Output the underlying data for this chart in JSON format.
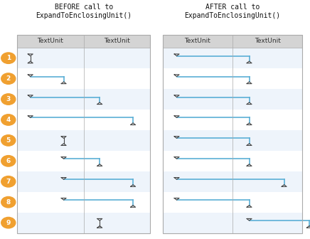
{
  "title_before": "BEFORE call to\nExpandToEnclosingUnit()",
  "title_after": "AFTER call to\nExpandToEnclosingUnit()",
  "header_labels": [
    "TextUnit",
    "TextUnit"
  ],
  "line_color": "#5bafd6",
  "marker_color": "#444444",
  "orange_color": "#f0a030",
  "panel_bg_even": "#eef4fb",
  "panel_bg_odd": "#ffffff",
  "header_bg": "#d4d4d4",
  "panel_border": "#aaaaaa",
  "n_rows": 9,
  "before_start_col": [
    0,
    0,
    0,
    0,
    1,
    1,
    1,
    1,
    2
  ],
  "before_end_col": [
    0,
    1,
    2,
    3,
    1,
    2,
    3,
    3,
    2
  ],
  "after_start_col": [
    0,
    0,
    0,
    0,
    0,
    0,
    0,
    0,
    2
  ],
  "after_end_col": [
    2,
    2,
    2,
    2,
    2,
    2,
    3,
    2,
    4
  ]
}
